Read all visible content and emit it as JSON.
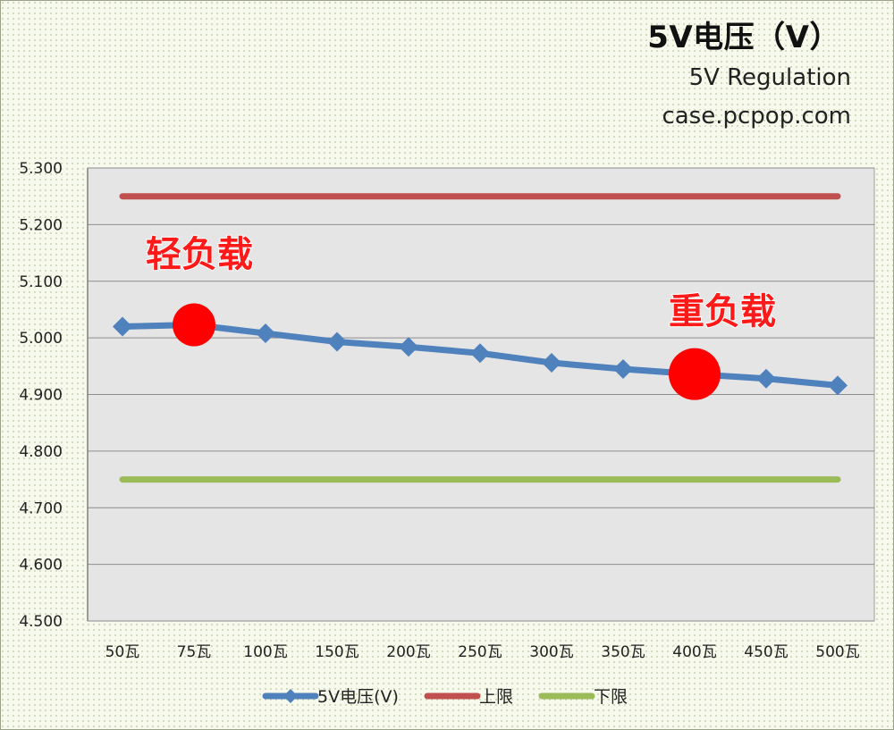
{
  "header": {
    "title": "5V电压（V）",
    "subtitle_1": "5V Regulation",
    "subtitle_2": "case.pcpop.com"
  },
  "colors": {
    "series_main": "#4f81bd",
    "upper_limit": "#c0504d",
    "lower_limit": "#9bbb59",
    "highlight": "#ff0000",
    "plot_bg": "#e5e5e5",
    "grid": "#8c8c8c"
  },
  "chart_data": {
    "type": "line",
    "categories": [
      "50瓦",
      "75瓦",
      "100瓦",
      "150瓦",
      "200瓦",
      "250瓦",
      "300瓦",
      "350瓦",
      "400瓦",
      "450瓦",
      "500瓦"
    ],
    "series": [
      {
        "name": "5V电压(V)",
        "values": [
          5.02,
          5.023,
          5.008,
          4.993,
          4.984,
          4.973,
          4.956,
          4.945,
          4.936,
          4.928,
          4.916
        ],
        "marker": "diamond"
      },
      {
        "name": "上限",
        "values": [
          5.25,
          5.25,
          5.25,
          5.25,
          5.25,
          5.25,
          5.25,
          5.25,
          5.25,
          5.25,
          5.25
        ],
        "marker": "none"
      },
      {
        "name": "下限",
        "values": [
          4.75,
          4.75,
          4.75,
          4.75,
          4.75,
          4.75,
          4.75,
          4.75,
          4.75,
          4.75,
          4.75
        ],
        "marker": "none"
      }
    ],
    "ylim": [
      4.5,
      5.3
    ],
    "yticks": [
      "5.300",
      "5.200",
      "5.100",
      "5.000",
      "4.900",
      "4.800",
      "4.700",
      "4.600",
      "4.500"
    ],
    "grid": true,
    "legend": "bottom",
    "highlights": [
      {
        "category": "75瓦",
        "value": 5.023,
        "label": "轻负载"
      },
      {
        "category": "400瓦",
        "value": 4.936,
        "label": "重负载"
      }
    ]
  }
}
